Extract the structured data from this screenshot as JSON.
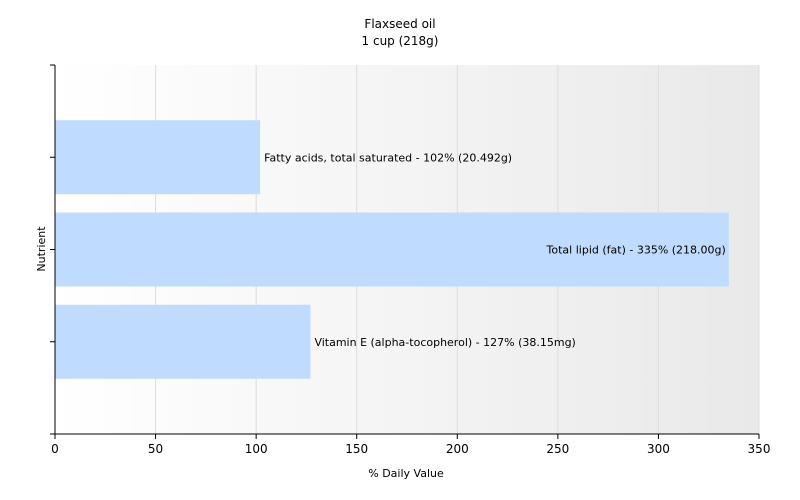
{
  "chart_data": {
    "type": "bar",
    "orientation": "horizontal",
    "title": "Flaxseed oil",
    "subtitle": "1 cup (218g)",
    "xlabel": "% Daily Value",
    "ylabel": "Nutrient",
    "xlim": [
      0,
      350
    ],
    "xticks": [
      0,
      50,
      100,
      150,
      200,
      250,
      300,
      350
    ],
    "grid": true,
    "categories": [
      "Fatty acids, total saturated",
      "Total lipid (fat)",
      "Vitamin E (alpha-tocopherol)"
    ],
    "values": [
      102,
      335,
      127
    ],
    "bar_labels": [
      "Fatty acids, total saturated - 102% (20.492g)",
      "Total lipid (fat) - 335% (218.00g)",
      "Vitamin E (alpha-tocopherol) - 127% (38.15mg)"
    ],
    "bar_color": "#bfdcff",
    "background_gradient": [
      "#ffffff",
      "#e9e9e9"
    ]
  }
}
